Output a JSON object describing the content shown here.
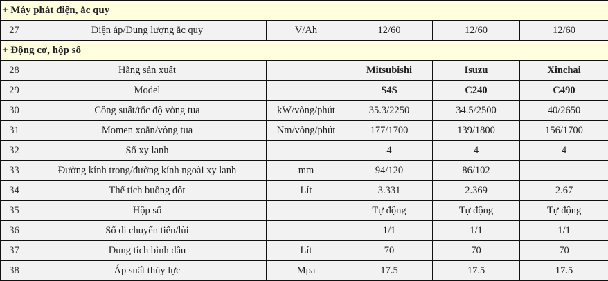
{
  "sections": [
    {
      "title": "+ Máy phát điện, ắc quy",
      "rows": [
        {
          "no": "27",
          "name": "Điện áp/Dung lượng ắc quy",
          "unit": "V/Ah",
          "values": [
            "12/60",
            "12/60",
            "12/60"
          ],
          "bold": false
        }
      ]
    },
    {
      "title": "+ Động cơ, hộp số",
      "rows": [
        {
          "no": "28",
          "name": "Hãng sản xuất",
          "unit": "",
          "values": [
            "Mitsubishi",
            "Isuzu",
            "Xinchai"
          ],
          "bold": true
        },
        {
          "no": "29",
          "name": "Model",
          "unit": "",
          "values": [
            "S4S",
            "C240",
            "C490"
          ],
          "bold": true
        },
        {
          "no": "30",
          "name": "Công suất/tốc độ vòng tua",
          "unit": "kW/vòng/phút",
          "values": [
            "35.3/2250",
            "34.5/2500",
            "40/2650"
          ],
          "bold": false
        },
        {
          "no": "31",
          "name": "Momen xoắn/vòng tua",
          "unit": "Nm/vòng/phút",
          "values": [
            "177/1700",
            "139/1800",
            "156/1700"
          ],
          "bold": false
        },
        {
          "no": "32",
          "name": "Số xy lanh",
          "unit": "",
          "values": [
            "4",
            "4",
            "4"
          ],
          "bold": false
        },
        {
          "no": "33",
          "name": "Đường kính trong/đường kính ngoài xy lanh",
          "unit": "mm",
          "values": [
            "94/120",
            "86/102",
            ""
          ],
          "bold": false
        },
        {
          "no": "34",
          "name": "Thể tích buồng đốt",
          "unit": "Lít",
          "values": [
            "3.331",
            "2.369",
            "2.67"
          ],
          "bold": false
        },
        {
          "no": "35",
          "name": "Hộp số",
          "unit": "",
          "values": [
            "Tự động",
            "Tự động",
            "Tự động"
          ],
          "bold": false
        },
        {
          "no": "36",
          "name": "Số di chuyển tiến/lùi",
          "unit": "",
          "values": [
            "1/1",
            "1/1",
            "1/1"
          ],
          "bold": false
        },
        {
          "no": "37",
          "name": "Dung tích bình dầu",
          "unit": "Lít",
          "values": [
            "70",
            "70",
            "70"
          ],
          "bold": false
        },
        {
          "no": "38",
          "name": "Áp suất thủy lực",
          "unit": "Mpa",
          "values": [
            "17.5",
            "17.5",
            "17.5"
          ],
          "bold": false
        }
      ]
    }
  ],
  "colors": {
    "section_bg": "#ffffe0",
    "row_bg": "#f2f2f2",
    "border": "#111111"
  }
}
